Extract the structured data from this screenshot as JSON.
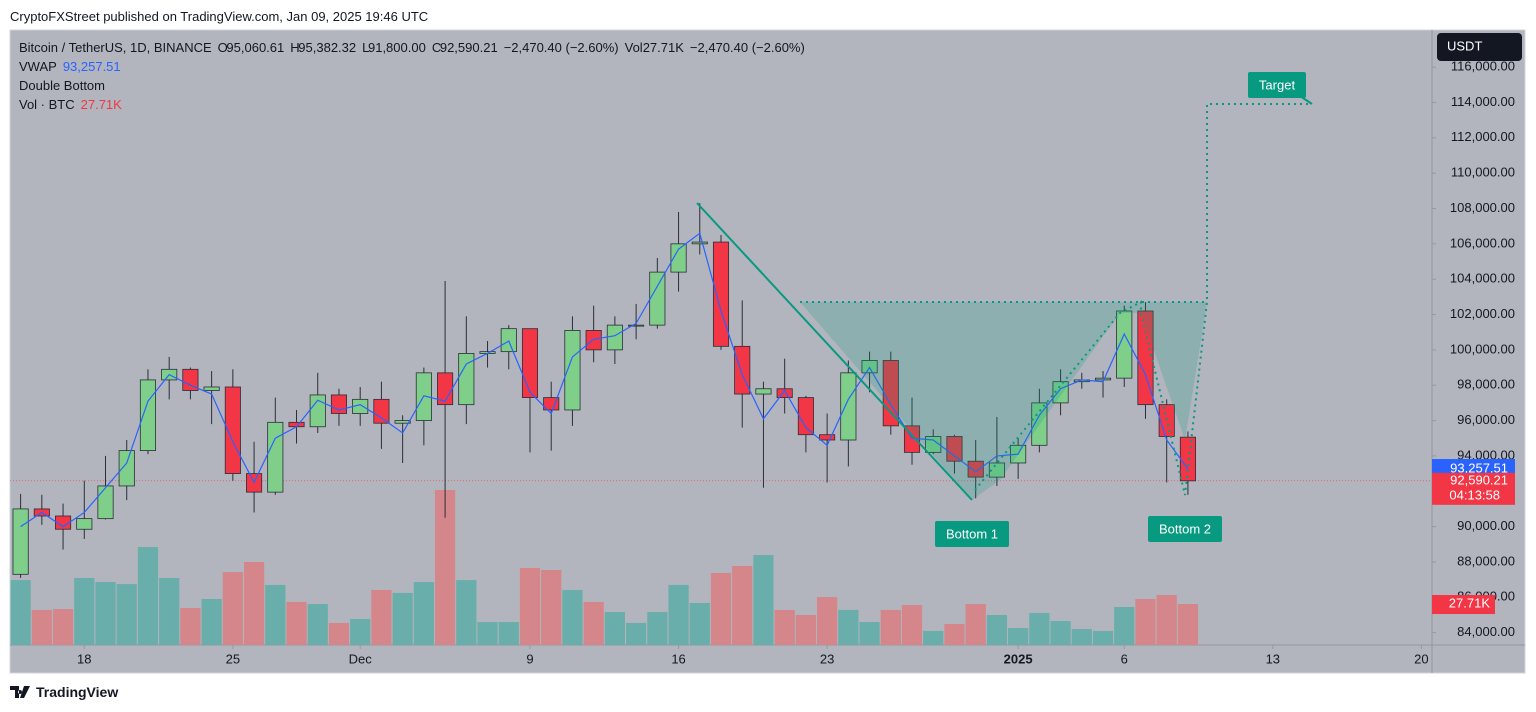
{
  "header": "CryptoFXStreet published on TradingView.com, Jan 09, 2025 19:46 UTC",
  "footer_brand": "TradingView",
  "chart_data": {
    "type": "candlestick",
    "title": "Bitcoin / TetherUS, 1D, BINANCE",
    "legend": {
      "ohlc": [
        {
          "key": "O",
          "value": "95,060.61"
        },
        {
          "key": "H",
          "value": "95,382.32"
        },
        {
          "key": "L",
          "value": "91,800.00"
        },
        {
          "key": "C",
          "value": "92,590.21"
        }
      ],
      "change": "−2,470.40 (−2.60%)",
      "vol_key": "Vol",
      "vol": "27.71K",
      "change2": "−2,470.40 (−2.60%)"
    },
    "currency": "USDT",
    "x": [
      "2024-11-15",
      "2024-11-16",
      "2024-11-17",
      "2024-11-18",
      "2024-11-19",
      "2024-11-20",
      "2024-11-21",
      "2024-11-22",
      "2024-11-23",
      "2024-11-24",
      "2024-11-25",
      "2024-11-26",
      "2024-11-27",
      "2024-11-28",
      "2024-11-29",
      "2024-11-30",
      "2024-12-01",
      "2024-12-02",
      "2024-12-03",
      "2024-12-04",
      "2024-12-05",
      "2024-12-06",
      "2024-12-07",
      "2024-12-08",
      "2024-12-09",
      "2024-12-10",
      "2024-12-11",
      "2024-12-12",
      "2024-12-13",
      "2024-12-14",
      "2024-12-15",
      "2024-12-16",
      "2024-12-17",
      "2024-12-18",
      "2024-12-19",
      "2024-12-20",
      "2024-12-21",
      "2024-12-22",
      "2024-12-23",
      "2024-12-24",
      "2024-12-25",
      "2024-12-26",
      "2024-12-27",
      "2024-12-28",
      "2024-12-29",
      "2024-12-30",
      "2024-12-31",
      "2025-01-01",
      "2025-01-02",
      "2025-01-03",
      "2025-01-04",
      "2025-01-05",
      "2025-01-06",
      "2025-01-07",
      "2025-01-08",
      "2025-01-09"
    ],
    "open": [
      87300,
      91000,
      90600,
      89850,
      90450,
      92300,
      94300,
      98300,
      98900,
      97700,
      97900,
      93000,
      91950,
      95900,
      95650,
      97450,
      96400,
      97200,
      95850,
      96000,
      98700,
      96900,
      99800,
      99900,
      101200,
      97300,
      96600,
      101100,
      100000,
      101400,
      101400,
      104400,
      106000,
      106100,
      100200,
      97500,
      97800,
      97300,
      95200,
      94900,
      98700,
      99400,
      95700,
      94200,
      95100,
      93700,
      92800,
      93600,
      94600,
      97000,
      98200,
      98300,
      98400,
      102200,
      96900,
      95060.61
    ],
    "high": [
      91850,
      91800,
      91300,
      92600,
      94000,
      94900,
      98900,
      99600,
      99000,
      98800,
      98900,
      94800,
      97300,
      96600,
      98700,
      97800,
      97900,
      98200,
      96300,
      99000,
      103900,
      101900,
      100500,
      101400,
      101200,
      98200,
      101900,
      102500,
      101900,
      102600,
      105200,
      107800,
      108300,
      106500,
      102800,
      98200,
      99500,
      97400,
      96400,
      99400,
      99900,
      99900,
      97300,
      95500,
      95200,
      94900,
      96200,
      95000,
      97800,
      98900,
      98700,
      98800,
      102500,
      102700,
      97200,
      95382.32
    ],
    "low": [
      87100,
      90100,
      88700,
      89300,
      90400,
      91500,
      94100,
      97200,
      97200,
      95800,
      92600,
      90800,
      91800,
      94700,
      95300,
      95700,
      95700,
      94400,
      93600,
      94600,
      90500,
      95800,
      99000,
      98900,
      94200,
      94300,
      95700,
      99300,
      99200,
      100600,
      101200,
      103300,
      105400,
      100000,
      95600,
      92200,
      96400,
      94200,
      92500,
      93400,
      97600,
      95200,
      93500,
      94100,
      93000,
      91600,
      92300,
      92700,
      94200,
      96300,
      97800,
      97300,
      97900,
      96100,
      92500,
      91800
    ],
    "close": [
      91000,
      90600,
      89850,
      90450,
      92300,
      94300,
      98300,
      98900,
      97700,
      97900,
      93000,
      91950,
      95900,
      95650,
      97450,
      96400,
      97200,
      95850,
      96000,
      98700,
      96900,
      99800,
      99900,
      101200,
      97300,
      96600,
      101100,
      100000,
      101400,
      101400,
      104400,
      106000,
      106100,
      100200,
      97500,
      97800,
      97300,
      95200,
      94900,
      98700,
      99400,
      95700,
      94200,
      95100,
      93700,
      92800,
      93600,
      94600,
      97000,
      98200,
      98300,
      98400,
      102200,
      96900,
      95100,
      92590.21
    ],
    "up_color": "#7fcf8b",
    "down_color": "#f23645",
    "border_color": "#2a2e39",
    "last_price_label": "92,590.21",
    "countdown": "04:13:58",
    "vwap": {
      "name": "VWAP",
      "color": "#2962ff",
      "last_label": "93,257.51",
      "values": [
        90000,
        90800,
        90000,
        90800,
        92200,
        93600,
        97100,
        98600,
        98000,
        97500,
        94800,
        92500,
        95000,
        95650,
        97150,
        96600,
        96900,
        96150,
        95300,
        97400,
        97100,
        99200,
        99800,
        100500,
        97600,
        96400,
        99600,
        100600,
        100800,
        101500,
        103600,
        105700,
        106600,
        102200,
        98600,
        96100,
        97700,
        95600,
        94600,
        97200,
        99000,
        96900,
        95000,
        94900,
        94000,
        93100,
        94000,
        94100,
        96300,
        97800,
        98300,
        98200,
        100900,
        98600,
        94900,
        93257.51
      ]
    },
    "volume": {
      "name": "Vol · BTC",
      "last_label": "27.71K",
      "up_color": "#6aaeab",
      "down_color": "#d4868a",
      "values": [
        43900,
        23700,
        24300,
        45300,
        42600,
        41200,
        66200,
        45300,
        25000,
        31100,
        49300,
        56100,
        40600,
        29100,
        27700,
        14900,
        17600,
        37200,
        35200,
        42600,
        104800,
        43900,
        15500,
        15500,
        52100,
        50700,
        37200,
        29100,
        22300,
        14900,
        22300,
        40600,
        28400,
        48700,
        53400,
        60800,
        23700,
        20300,
        32400,
        23700,
        15500,
        23700,
        27000,
        9500,
        14200,
        27700,
        20300,
        11500,
        21600,
        16200,
        10800,
        9500,
        25700,
        31100,
        33800,
        27710
      ]
    },
    "drawing": {
      "name": "Double Bottom",
      "labels": [
        "Bottom 1",
        "Bottom 2",
        "Target"
      ],
      "color": "#089981"
    },
    "xlim": [
      "2024-11-14T12:00:00Z",
      "2025-01-20T12:00:00Z"
    ],
    "xticks": [
      {
        "value": "2024-11-18",
        "label": "18"
      },
      {
        "value": "2024-11-25",
        "label": "25"
      },
      {
        "value": "2024-12-01",
        "label": "Dec"
      },
      {
        "value": "2024-12-09",
        "label": "9"
      },
      {
        "value": "2024-12-16",
        "label": "16"
      },
      {
        "value": "2024-12-23",
        "label": "23"
      },
      {
        "value": "2025-01-01",
        "label": "2025"
      },
      {
        "value": "2025-01-06",
        "label": "6"
      },
      {
        "value": "2025-01-13",
        "label": "13"
      },
      {
        "value": "2025-01-20",
        "label": "20"
      }
    ],
    "ylim": [
      83300,
      118100
    ],
    "yticks": [
      {
        "value": 84000,
        "label": "84,000.00"
      },
      {
        "value": 86000,
        "label": "86,000.00"
      },
      {
        "value": 88000,
        "label": "88,000.00"
      },
      {
        "value": 90000,
        "label": "90,000.00"
      },
      {
        "value": 92000,
        "label": "92,000.00"
      },
      {
        "value": 94000,
        "label": "94,000.00"
      },
      {
        "value": 96000,
        "label": "96,000.00"
      },
      {
        "value": 98000,
        "label": "98,000.00"
      },
      {
        "value": 100000,
        "label": "100,000.00"
      },
      {
        "value": 102000,
        "label": "102,000.00"
      },
      {
        "value": 104000,
        "label": "104,000.00"
      },
      {
        "value": 106000,
        "label": "106,000.00"
      },
      {
        "value": 108000,
        "label": "108,000.00"
      },
      {
        "value": 110000,
        "label": "110,000.00"
      },
      {
        "value": 112000,
        "label": "112,000.00"
      },
      {
        "value": 114000,
        "label": "114,000.00"
      },
      {
        "value": 116000,
        "label": "116,000.00"
      }
    ]
  }
}
